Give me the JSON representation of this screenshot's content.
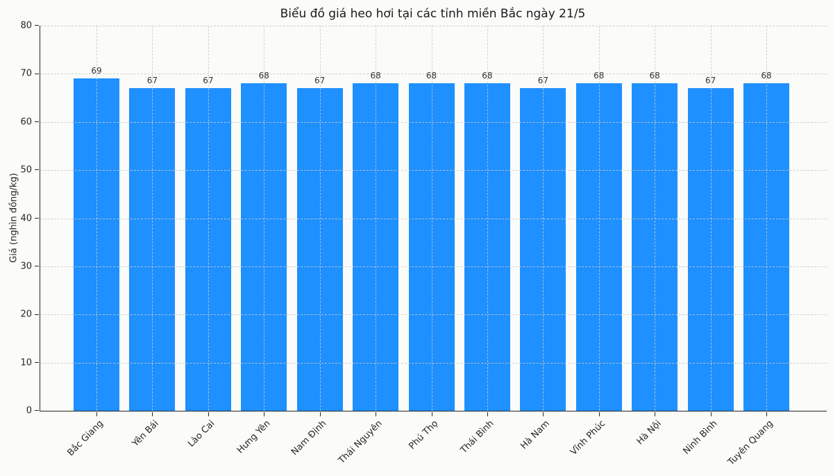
{
  "page": {
    "background_color": "#fbfbf9",
    "text_color": "#262626"
  },
  "chart_data": {
    "type": "bar",
    "title": "Biểu đồ giá heo hơi tại các tỉnh miền Bắc ngày 21/5",
    "categories": [
      "Bắc Giang",
      "Yên Bái",
      "Lào Cai",
      "Hưng Yên",
      "Nam Định",
      "Thái Nguyên",
      "Phú Thọ",
      "Thái Bình",
      "Hà Nam",
      "Vĩnh Phúc",
      "Hà Nội",
      "Ninh Bình",
      "Tuyên Quang"
    ],
    "values": [
      69,
      67,
      67,
      68,
      67,
      68,
      68,
      68,
      67,
      68,
      68,
      67,
      68
    ],
    "value_labels_shown": true,
    "xlabel": "",
    "ylabel": "Giá (nghìn đồng/kg)",
    "ylim": [
      0,
      80
    ],
    "yticks": [
      0,
      10,
      20,
      30,
      40,
      50,
      60,
      70,
      80
    ],
    "xtick_rotation_degrees": 45,
    "grid": "dashed",
    "legend": "none",
    "bar_color": "#1E90FF",
    "value_label_color": "#333333"
  }
}
